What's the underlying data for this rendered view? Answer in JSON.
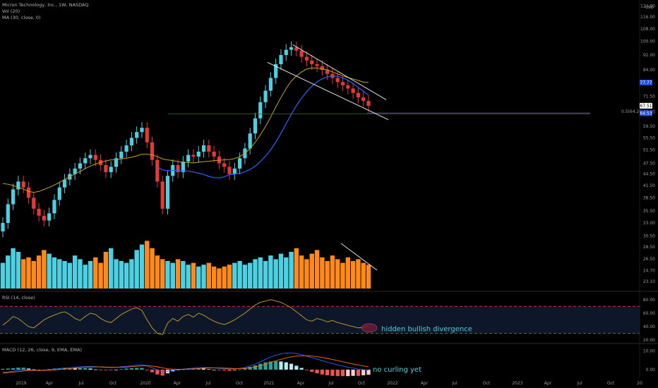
{
  "header": {
    "symbol_line": "Micron Technology, Inc., 1W, NASDAQ",
    "vol_label": "Vol (20)",
    "ma_label": "MA (30, close, 0)",
    "currency": "USD"
  },
  "chart_data": [
    {
      "type": "candlestick",
      "panel": "price",
      "title": "Micron Technology, Inc., 1W, NASDAQ",
      "y_ticks": [
        124.0,
        116.0,
        108.0,
        100.0,
        92.0,
        84.0,
        71.5,
        65.0,
        59.5,
        55.5,
        51.5,
        47.5,
        44.5,
        41.5,
        38.5,
        35.5,
        33.0,
        30.5,
        28.5,
        26.5,
        24.7,
        23.1
      ],
      "y_scale": "log",
      "x_ticks": [
        "2019",
        "Apr",
        "Jul",
        "Oct",
        "2020",
        "Apr",
        "Jul",
        "Oct",
        "2021",
        "Apr",
        "Jul",
        "Oct",
        "2022",
        "Apr",
        "Jul",
        "Oct",
        "2023",
        "Apr",
        "Jul",
        "Oct",
        "20"
      ],
      "price_tags": [
        {
          "value": "77.77",
          "color": "#1e4fd8"
        },
        {
          "value": "67.51",
          "color": "#ffffff"
        },
        {
          "value": "64.53",
          "color": "#1e4fd8"
        }
      ],
      "fib_label": "0.5(64.26)",
      "fib_value": 64.26,
      "close_series": [
        33.0,
        37.0,
        40.5,
        42.5,
        41.0,
        38.5,
        36.0,
        34.5,
        33.5,
        35.0,
        38.0,
        41.0,
        43.0,
        44.5,
        46.0,
        47.5,
        49.0,
        50.0,
        48.5,
        47.0,
        45.0,
        46.5,
        49.0,
        51.0,
        53.0,
        55.5,
        57.5,
        59.0,
        54.0,
        48.5,
        42.5,
        36.0,
        44.0,
        47.0,
        45.0,
        48.0,
        50.0,
        49.5,
        51.0,
        53.0,
        51.0,
        49.5,
        47.5,
        46.5,
        44.5,
        46.0,
        49.0,
        52.0,
        57.0,
        62.5,
        69.0,
        74.0,
        80.0,
        87.0,
        92.0,
        95.0,
        96.5,
        94.5,
        91.0,
        89.0,
        87.0,
        86.0,
        84.0,
        82.0,
        80.0,
        78.0,
        76.5,
        75.0,
        73.0,
        71.0,
        69.5,
        67.5
      ],
      "series": [
        {
          "name": "Vol (20)",
          "values": [
            14,
            18,
            22,
            20,
            16,
            17,
            15,
            18,
            21,
            19,
            17,
            16,
            15,
            14,
            18,
            16,
            13,
            15,
            17,
            14,
            20,
            22,
            16,
            15,
            14,
            16,
            21,
            24,
            26,
            22,
            18,
            16,
            15,
            14,
            16,
            15,
            13,
            14,
            12,
            13,
            14,
            12,
            11,
            12,
            13,
            14,
            15,
            13,
            14,
            16,
            17,
            15,
            18,
            16,
            19,
            17,
            20,
            22,
            18,
            16,
            19,
            21,
            17,
            15,
            18,
            16,
            14,
            17,
            15,
            16,
            14,
            13
          ]
        },
        {
          "name": "MA (30, close, 0)",
          "values": [
            42.0,
            41.8,
            41.5,
            41.0,
            40.6,
            40.0,
            39.8,
            40.0,
            40.5,
            41.0,
            41.6,
            42.3,
            43.0,
            43.8,
            44.5,
            45.2,
            46.0,
            46.7,
            47.3,
            47.8,
            48.2,
            48.5,
            48.6,
            48.8,
            49.0,
            49.3,
            49.7,
            50.2,
            50.2,
            50.0,
            49.5,
            48.8,
            48.5,
            48.3,
            48.0,
            47.8,
            47.7,
            47.6,
            47.8,
            48.0,
            48.1,
            48.3,
            48.4,
            48.5,
            48.6,
            48.9,
            49.5,
            50.5,
            52.0,
            54.0,
            56.5,
            59.5,
            63.0,
            67.0,
            71.0,
            75.0,
            78.5,
            81.0,
            83.0,
            84.5,
            85.0,
            85.0,
            84.5,
            84.0,
            83.0,
            82.0,
            81.0,
            80.2,
            79.5,
            78.8,
            78.0,
            77.77
          ]
        }
      ]
    },
    {
      "type": "line",
      "panel": "rsi",
      "title": "RSI (14, close)",
      "y_ticks": [
        80.0,
        60.0,
        40.0,
        20.0
      ],
      "ylim": [
        20,
        85
      ],
      "bands": [
        70,
        30
      ],
      "series": [
        {
          "name": "RSI",
          "values": [
            42,
            48,
            55,
            52,
            46,
            40,
            38,
            44,
            50,
            54,
            57,
            60,
            62,
            58,
            52,
            49,
            55,
            60,
            58,
            52,
            48,
            46,
            52,
            58,
            62,
            66,
            68,
            64,
            50,
            38,
            30,
            28,
            45,
            52,
            48,
            55,
            58,
            54,
            60,
            57,
            52,
            48,
            45,
            43,
            46,
            50,
            55,
            60,
            66,
            72,
            76,
            78,
            80,
            78,
            76,
            72,
            68,
            62,
            56,
            50,
            48,
            52,
            50,
            47,
            49,
            46,
            44,
            42,
            40,
            38,
            39,
            41
          ]
        }
      ],
      "annotation": "hidden bullish divergence"
    },
    {
      "type": "line",
      "panel": "macd",
      "title": "MACD (12, 26, close, 9, EMA, EMA)",
      "y_ticks": [
        10.0,
        0.0
      ],
      "ylim": [
        -3,
        12
      ],
      "series": [
        {
          "name": "MACD",
          "values": [
            -1.5,
            -1.2,
            -0.8,
            -0.3,
            0.0,
            -0.1,
            -0.3,
            -0.5,
            -0.4,
            -0.1,
            0.2,
            0.6,
            0.9,
            1.1,
            1.3,
            1.5,
            1.7,
            1.8,
            1.6,
            1.4,
            1.2,
            1.1,
            1.2,
            1.5,
            1.8,
            2.1,
            2.4,
            2.6,
            2.0,
            1.0,
            -0.2,
            -1.2,
            -0.8,
            -0.3,
            0.0,
            0.3,
            0.6,
            0.8,
            1.0,
            1.2,
            1.1,
            0.9,
            0.7,
            0.5,
            0.3,
            0.4,
            0.7,
            1.2,
            2.0,
            3.0,
            4.2,
            5.5,
            6.7,
            7.7,
            8.4,
            8.8,
            8.9,
            8.6,
            8.0,
            7.2,
            6.4,
            5.6,
            4.8,
            4.0,
            3.2,
            2.5,
            1.9,
            1.3,
            0.8,
            0.3,
            0.0,
            -0.3
          ]
        },
        {
          "name": "Signal",
          "values": [
            -1.8,
            -1.6,
            -1.3,
            -1.0,
            -0.7,
            -0.5,
            -0.4,
            -0.4,
            -0.4,
            -0.3,
            -0.2,
            0.1,
            0.4,
            0.6,
            0.8,
            1.0,
            1.2,
            1.4,
            1.5,
            1.5,
            1.4,
            1.3,
            1.3,
            1.3,
            1.4,
            1.6,
            1.8,
            2.0,
            2.1,
            1.9,
            1.5,
            0.9,
            0.5,
            0.3,
            0.2,
            0.2,
            0.3,
            0.4,
            0.6,
            0.8,
            0.9,
            0.9,
            0.9,
            0.8,
            0.7,
            0.6,
            0.6,
            0.7,
            1.0,
            1.5,
            2.1,
            2.9,
            3.8,
            4.7,
            5.5,
            6.2,
            6.8,
            7.2,
            7.4,
            7.4,
            7.2,
            6.9,
            6.5,
            6.0,
            5.4,
            4.8,
            4.2,
            3.6,
            3.0,
            2.5,
            2.0,
            1.5
          ]
        }
      ],
      "annotation": "no curling yet"
    }
  ]
}
